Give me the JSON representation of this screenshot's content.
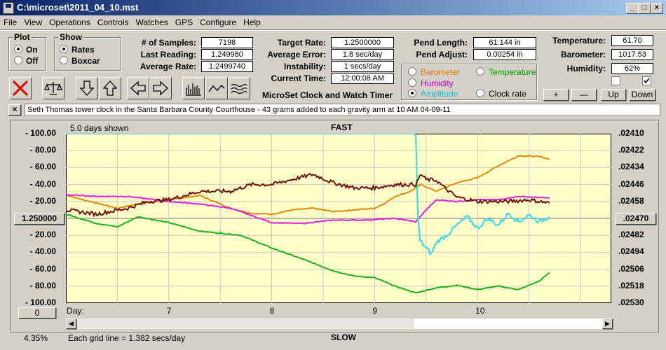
{
  "window": {
    "title": "C:\\microset\\2011_04_10.mst",
    "min": "_",
    "max": "□",
    "close": "×"
  },
  "menu": [
    "File",
    "View",
    "Operations",
    "Controls",
    "Watches",
    "GPS",
    "Configure",
    "Help"
  ],
  "plot_group": {
    "label": "Plot",
    "options": [
      "On",
      "Off"
    ],
    "selected": 0
  },
  "show_group": {
    "label": "Show",
    "options": [
      "Rates",
      "Boxcar"
    ],
    "selected": 0
  },
  "stats": {
    "samples_label": "# of Samples:",
    "samples": "7198",
    "last_label": "Last Reading:",
    "last": "1.249980",
    "avg_label": "Average Rate:",
    "avg": "1.2499740",
    "target_label": "Target Rate:",
    "target": "1.2500000",
    "avgerr_label": "Average Error:",
    "avgerr": "1.8 sec/day",
    "instab_label": "Instability:",
    "instab": "1 secs/day",
    "time_label": "Current Time:",
    "time": "12:00:08 AM",
    "pendlen_label": "Pend Length:",
    "pendlen": "61.144 in",
    "pendadj_label": "Pend Adjust:",
    "pendadj": "0.00254 in",
    "temp_label": "Temperature:",
    "temp": "61.70",
    "baro_label": "Barometer:",
    "baro": "1017.53",
    "hum_label": "Humidity:",
    "hum": "62%"
  },
  "app_title": "MicroSet Clock and Watch Timer",
  "param_options": [
    {
      "label": "Barometer",
      "color": "#e07a00"
    },
    {
      "label": "Temperature",
      "color": "#009a00"
    },
    {
      "label": "Humidity",
      "color": "#c000c0"
    },
    {
      "label": "Amplitude",
      "color": "#00c0e0"
    },
    {
      "label": "Clock rate",
      "color": "#000000"
    }
  ],
  "param_selected": 3,
  "small_buttons": [
    "+",
    "—",
    "Up",
    "Down"
  ],
  "note": "Seth Thomas tower clock in the Santa Barbara County Courthouse - 43 grams added to each gravity arm at 10 AM 04-09-11",
  "note_close": "×",
  "chart_data": {
    "type": "line",
    "title": "FAST",
    "bottom_label": "SLOW",
    "days_shown": "5.0 days shown",
    "x_axis_label": "Day:",
    "x_ticks": [
      "7",
      "8",
      "9",
      "10"
    ],
    "y_left_ticks": [
      "100.00",
      "80.00",
      "60.00",
      "40.00",
      "20.00",
      "1.250000",
      "20.00",
      "40.00",
      "60.00",
      "80.00",
      "100.00"
    ],
    "y_right_ticks": [
      ".02410",
      ".02422",
      ".02434",
      ".02446",
      ".02458",
      ".02470",
      ".02482",
      ".02494",
      ".02506",
      ".02518",
      ".02530"
    ],
    "ylim": [
      -100,
      100
    ],
    "grid": true,
    "series": [
      {
        "name": "Barometer",
        "color": "#e08a10",
        "points": [
          [
            6,
            28
          ],
          [
            6.1,
            24
          ],
          [
            6.3,
            18
          ],
          [
            6.5,
            12
          ],
          [
            6.7,
            17
          ],
          [
            7,
            22
          ],
          [
            7.3,
            27
          ],
          [
            7.6,
            12
          ],
          [
            7.8,
            6
          ],
          [
            8,
            5
          ],
          [
            8.2,
            10
          ],
          [
            8.4,
            12
          ],
          [
            8.6,
            8
          ],
          [
            8.8,
            10
          ],
          [
            9,
            12
          ],
          [
            9.1,
            18
          ],
          [
            9.2,
            26
          ],
          [
            9.35,
            32
          ],
          [
            9.45,
            40
          ],
          [
            9.6,
            32
          ],
          [
            9.8,
            42
          ],
          [
            10,
            48
          ],
          [
            10.2,
            62
          ],
          [
            10.4,
            74
          ],
          [
            10.6,
            73
          ],
          [
            10.7,
            70
          ]
        ]
      },
      {
        "name": "Temperature",
        "color": "#20b020",
        "points": [
          [
            6,
            5
          ],
          [
            6.3,
            -6
          ],
          [
            6.5,
            -10
          ],
          [
            6.7,
            2
          ],
          [
            7,
            -5
          ],
          [
            7.3,
            -15
          ],
          [
            7.7,
            -20
          ],
          [
            8,
            -35
          ],
          [
            8.3,
            -48
          ],
          [
            8.6,
            -62
          ],
          [
            8.8,
            -68
          ],
          [
            9,
            -70
          ],
          [
            9.2,
            -80
          ],
          [
            9.4,
            -88
          ],
          [
            9.6,
            -82
          ],
          [
            9.8,
            -79
          ],
          [
            10,
            -84
          ],
          [
            10.2,
            -80
          ],
          [
            10.4,
            -84
          ],
          [
            10.6,
            -74
          ],
          [
            10.7,
            -64
          ]
        ]
      },
      {
        "name": "Humidity",
        "color": "#e020e0",
        "points": [
          [
            6,
            28
          ],
          [
            6.3,
            26
          ],
          [
            6.6,
            26
          ],
          [
            7,
            20
          ],
          [
            7.3,
            17
          ],
          [
            7.6,
            12
          ],
          [
            8,
            -5
          ],
          [
            8.3,
            -6
          ],
          [
            8.6,
            -2
          ],
          [
            8.9,
            -2
          ],
          [
            9.2,
            0
          ],
          [
            9.4,
            -4
          ],
          [
            9.5,
            10
          ],
          [
            9.6,
            22
          ],
          [
            9.8,
            20
          ],
          [
            10,
            22
          ],
          [
            10.2,
            22
          ],
          [
            10.4,
            26
          ],
          [
            10.7,
            24
          ]
        ]
      },
      {
        "name": "Amplitude",
        "color": "#30d8f0",
        "points": [
          [
            6,
            100
          ],
          [
            9.4,
            100
          ],
          [
            9.42,
            4
          ],
          [
            9.44,
            -26
          ],
          [
            9.5,
            -35
          ],
          [
            9.55,
            -42
          ],
          [
            9.6,
            -28
          ],
          [
            9.7,
            -20
          ],
          [
            9.8,
            -8
          ],
          [
            9.9,
            2
          ],
          [
            10,
            -12
          ],
          [
            10.1,
            0
          ],
          [
            10.2,
            -8
          ],
          [
            10.3,
            6
          ],
          [
            10.4,
            -4
          ],
          [
            10.5,
            4
          ],
          [
            10.6,
            -4
          ],
          [
            10.7,
            2
          ]
        ]
      },
      {
        "name": "Clock rate",
        "color": "#701010",
        "points": [
          [
            6,
            10
          ],
          [
            6.3,
            5
          ],
          [
            6.6,
            12
          ],
          [
            6.8,
            20
          ],
          [
            7,
            22
          ],
          [
            7.3,
            32
          ],
          [
            7.6,
            32
          ],
          [
            7.8,
            40
          ],
          [
            8,
            40
          ],
          [
            8.2,
            46
          ],
          [
            8.4,
            52
          ],
          [
            8.6,
            42
          ],
          [
            8.8,
            36
          ],
          [
            9,
            36
          ],
          [
            9.2,
            40
          ],
          [
            9.4,
            40
          ],
          [
            9.45,
            52
          ],
          [
            9.5,
            46
          ],
          [
            9.6,
            45
          ],
          [
            9.7,
            34
          ],
          [
            9.8,
            25
          ],
          [
            10,
            20
          ],
          [
            10.3,
            20
          ],
          [
            10.5,
            22
          ],
          [
            10.7,
            18
          ]
        ]
      }
    ],
    "xlim": [
      6.0,
      11.3
    ]
  },
  "status": {
    "zoom": "4.35%",
    "grid_note": "Each grid line = 1.382 secs/day",
    "zero_button": "0",
    "mid_button": "1.250000",
    "right_mid": ".02470"
  },
  "colors": {
    "plot_bg": "#ffffc8",
    "titlebar": "#0a246a"
  }
}
